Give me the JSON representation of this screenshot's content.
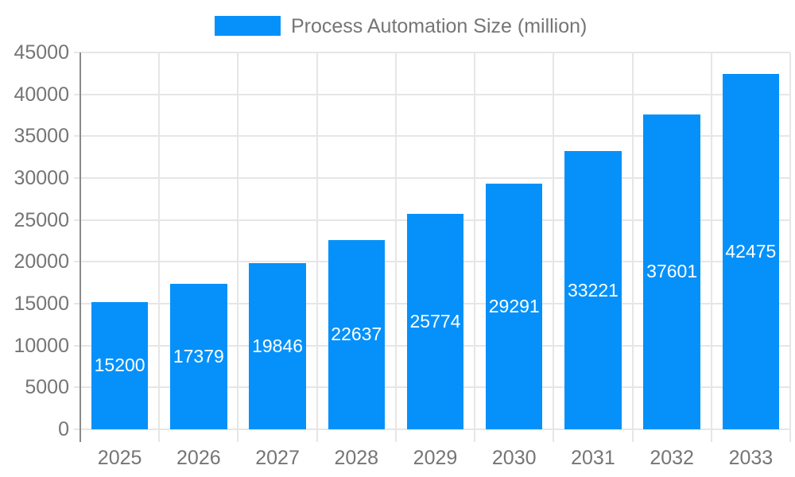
{
  "chart_data": {
    "type": "bar",
    "title": "Process Automation Size (million)",
    "legend": {
      "position": "top",
      "entries": [
        "Process Automation Size (million)"
      ]
    },
    "categories": [
      "2025",
      "2026",
      "2027",
      "2028",
      "2029",
      "2030",
      "2031",
      "2032",
      "2033"
    ],
    "values": [
      15200,
      17379,
      19846,
      22637,
      25774,
      29291,
      33221,
      37601,
      42475
    ],
    "value_labels": [
      "15200",
      "17379",
      "19846",
      "22637",
      "25774",
      "29291",
      "33221",
      "37601",
      "42475"
    ],
    "xlabel": "",
    "ylabel": "",
    "ylim": [
      0,
      45000
    ],
    "ytick_step": 5000,
    "ytick_labels": [
      "0",
      "5000",
      "10000",
      "15000",
      "20000",
      "25000",
      "30000",
      "35000",
      "40000",
      "45000"
    ],
    "grid": true,
    "colors": {
      "bar": "#0591f9",
      "bar_value_text": "#ffffff",
      "axis_text": "#757575",
      "gridline": "#e6e6e6",
      "axis_line": "#8a8a8a",
      "background": "#ffffff"
    }
  }
}
